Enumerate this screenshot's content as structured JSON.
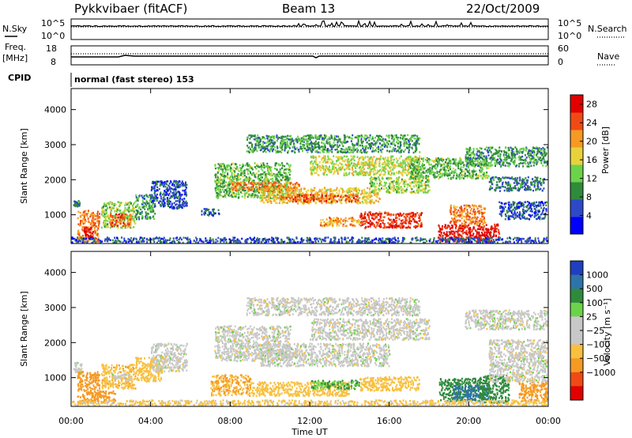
{
  "header": {
    "station": "Pykkvibaer (fitACF)",
    "beam": "Beam 13",
    "date": "22/Oct/2009"
  },
  "top_panels": {
    "nsky": {
      "left_label": "N.Sky",
      "right_label": "N.Search",
      "left_ticks": [
        "10^5",
        "10^0"
      ],
      "right_ticks": [
        "10^5",
        "10^0"
      ]
    },
    "freq": {
      "left_label_1": "Freq.",
      "left_label_2": "[MHz]",
      "right_label": "Nave",
      "left_ticks": [
        "18",
        "8"
      ],
      "right_ticks": [
        "60",
        "0"
      ]
    },
    "cpid": {
      "label": "CPID",
      "mode": "normal (fast stereo) 153"
    }
  },
  "colors": {
    "power_scale": [
      "#0000ff",
      "#2e48c8",
      "#2f8a3c",
      "#6bd34a",
      "#e8d23c",
      "#f59a23",
      "#f04a14",
      "#e00000"
    ],
    "velocity_scale": [
      "#e00000",
      "#f04a14",
      "#f59a23",
      "#f8c040",
      "#c8c8c8",
      "#c8c8c8",
      "#6bd34a",
      "#2f8a3c",
      "#2e74a8",
      "#1f3fbf"
    ]
  },
  "chart_data": [
    {
      "type": "heatmap",
      "name": "power-panel",
      "ylabel": "Slant Range [km]",
      "x_range_hours": [
        0,
        24
      ],
      "ylim": [
        180,
        4600
      ],
      "y_ticks": [
        "1000",
        "2000",
        "3000",
        "4000"
      ],
      "colorbar": {
        "label": "Power [dB]",
        "ticks": [
          "4",
          "8",
          "12",
          "16",
          "20",
          "24",
          "28"
        ],
        "range": [
          0,
          30
        ]
      },
      "echo_bands": [
        {
          "t0": 0.1,
          "t1": 0.4,
          "r0": 1250,
          "r1": 1420,
          "level": 8
        },
        {
          "t0": 0.3,
          "t1": 1.4,
          "r0": 250,
          "r1": 1150,
          "level": 22
        },
        {
          "t0": 0.6,
          "t1": 1.1,
          "r0": 350,
          "r1": 700,
          "level": 28
        },
        {
          "t0": 1.5,
          "t1": 3.2,
          "r0": 650,
          "r1": 1400,
          "level": 14
        },
        {
          "t0": 1.9,
          "t1": 3.0,
          "r0": 700,
          "r1": 1050,
          "level": 24
        },
        {
          "t0": 3.2,
          "t1": 4.2,
          "r0": 900,
          "r1": 1600,
          "level": 10
        },
        {
          "t0": 4.0,
          "t1": 5.8,
          "r0": 1200,
          "r1": 2000,
          "level": 6
        },
        {
          "t0": 6.5,
          "t1": 7.5,
          "r0": 1000,
          "r1": 1200,
          "level": 6
        },
        {
          "t0": 7.2,
          "t1": 11.0,
          "r0": 1500,
          "r1": 2500,
          "level": 12
        },
        {
          "t0": 8.0,
          "t1": 11.5,
          "r0": 1700,
          "r1": 1950,
          "level": 22
        },
        {
          "t0": 8.8,
          "t1": 17.5,
          "r0": 2800,
          "r1": 3300,
          "level": 10
        },
        {
          "t0": 9.5,
          "t1": 15.5,
          "r0": 1350,
          "r1": 1800,
          "level": 18
        },
        {
          "t0": 10.5,
          "t1": 14.5,
          "r0": 1400,
          "r1": 1600,
          "level": 24
        },
        {
          "t0": 12.0,
          "t1": 17.5,
          "r0": 2150,
          "r1": 2700,
          "level": 16
        },
        {
          "t0": 15.0,
          "t1": 18.0,
          "r0": 1650,
          "r1": 2100,
          "level": 14
        },
        {
          "t0": 14.5,
          "t1": 17.6,
          "r0": 650,
          "r1": 1100,
          "level": 26
        },
        {
          "t0": 12.5,
          "t1": 14.5,
          "r0": 700,
          "r1": 950,
          "level": 20
        },
        {
          "t0": 18.4,
          "t1": 21.5,
          "r0": 250,
          "r1": 750,
          "level": 28
        },
        {
          "t0": 19.0,
          "t1": 20.8,
          "r0": 750,
          "r1": 1300,
          "level": 22
        },
        {
          "t0": 17.0,
          "t1": 21.0,
          "r0": 2050,
          "r1": 2650,
          "level": 12
        },
        {
          "t0": 19.8,
          "t1": 24.0,
          "r0": 2400,
          "r1": 2950,
          "level": 10
        },
        {
          "t0": 21.5,
          "t1": 24.0,
          "r0": 900,
          "r1": 1400,
          "level": 6
        },
        {
          "t0": 21.0,
          "t1": 23.8,
          "r0": 1700,
          "r1": 2100,
          "level": 8
        },
        {
          "t0": 0.0,
          "t1": 24.0,
          "r0": 200,
          "r1": 380,
          "level": 6
        }
      ]
    },
    {
      "type": "heatmap",
      "name": "velocity-panel",
      "ylabel": "Slant Range [km]",
      "xlabel": "Time UT",
      "x_range_hours": [
        0,
        24
      ],
      "ylim": [
        180,
        4600
      ],
      "y_ticks": [
        "1000",
        "2000",
        "3000",
        "4000"
      ],
      "x_ticks": [
        "00:00",
        "04:00",
        "08:00",
        "12:00",
        "16:00",
        "20:00",
        "00:00"
      ],
      "colorbar": {
        "label": "Velocity [m s⁻¹]",
        "ticks": [
          "1000",
          "500",
          "100",
          "25",
          "−25",
          "−100",
          "−500",
          "−1000"
        ]
      },
      "echo_bands": [
        {
          "t0": 0.1,
          "t1": 0.5,
          "r0": 1150,
          "r1": 1450,
          "vel": 0
        },
        {
          "t0": 0.3,
          "t1": 1.4,
          "r0": 300,
          "r1": 1200,
          "vel": -150
        },
        {
          "t0": 1.0,
          "t1": 2.2,
          "r0": 300,
          "r1": 650,
          "vel": -300
        },
        {
          "t0": 1.5,
          "t1": 3.2,
          "r0": 700,
          "r1": 1400,
          "vel": -80
        },
        {
          "t0": 2.0,
          "t1": 3.0,
          "r0": 950,
          "r1": 1150,
          "vel": 0
        },
        {
          "t0": 3.2,
          "t1": 4.6,
          "r0": 900,
          "r1": 1600,
          "vel": -60
        },
        {
          "t0": 4.0,
          "t1": 5.8,
          "r0": 1200,
          "r1": 2000,
          "vel": 0
        },
        {
          "t0": 7.2,
          "t1": 11.0,
          "r0": 1500,
          "r1": 2500,
          "vel": 0
        },
        {
          "t0": 8.8,
          "t1": 17.5,
          "r0": 2800,
          "r1": 3300,
          "vel": 0
        },
        {
          "t0": 9.5,
          "t1": 16.0,
          "r0": 1350,
          "r1": 2000,
          "vel": 0
        },
        {
          "t0": 12.0,
          "t1": 18.0,
          "r0": 2100,
          "r1": 2700,
          "vel": 0
        },
        {
          "t0": 7.0,
          "t1": 9.0,
          "r0": 500,
          "r1": 1100,
          "vel": -100
        },
        {
          "t0": 9.0,
          "t1": 14.0,
          "r0": 500,
          "r1": 900,
          "vel": -60
        },
        {
          "t0": 12.0,
          "t1": 14.5,
          "r0": 700,
          "r1": 950,
          "vel": 100
        },
        {
          "t0": 14.5,
          "t1": 17.5,
          "r0": 650,
          "r1": 1050,
          "vel": -60
        },
        {
          "t0": 18.5,
          "t1": 20.5,
          "r0": 350,
          "r1": 1000,
          "vel": 150
        },
        {
          "t0": 19.2,
          "t1": 21.0,
          "r0": 400,
          "r1": 800,
          "vel": 600
        },
        {
          "t0": 20.5,
          "t1": 22.0,
          "r0": 300,
          "r1": 1100,
          "vel": 300
        },
        {
          "t0": 22.5,
          "t1": 24.0,
          "r0": 350,
          "r1": 900,
          "vel": -300
        },
        {
          "t0": 19.8,
          "t1": 24.0,
          "r0": 2400,
          "r1": 2950,
          "vel": 0
        },
        {
          "t0": 21.0,
          "t1": 24.0,
          "r0": 900,
          "r1": 2100,
          "vel": 0
        },
        {
          "t0": 0.0,
          "t1": 24.0,
          "r0": 200,
          "r1": 380,
          "vel": -40
        }
      ]
    }
  ]
}
